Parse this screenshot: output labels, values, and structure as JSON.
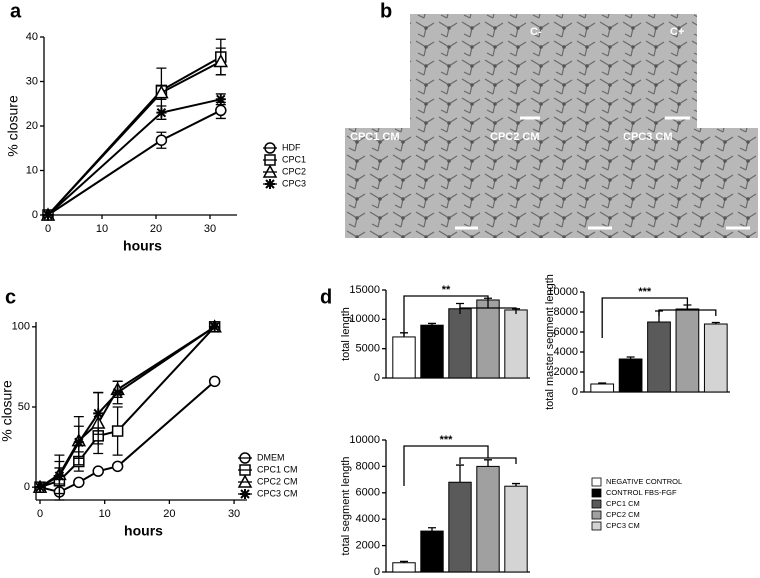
{
  "chart_data": [
    {
      "type": "line",
      "panel": "a",
      "ylabel": "% closure",
      "xlabel": "hours",
      "x": [
        0,
        21,
        32
      ],
      "xlim": [
        0,
        35
      ],
      "xticks": [
        0,
        10,
        20,
        30
      ],
      "ylim": [
        0,
        40
      ],
      "yticks": [
        0,
        10,
        20,
        30,
        40
      ],
      "series": [
        {
          "name": "HDF",
          "marker": "circle",
          "color": "#000000",
          "values": [
            0,
            16.8,
            23.5
          ],
          "errors": [
            0,
            1.8,
            1.8
          ]
        },
        {
          "name": "CPC1",
          "marker": "square",
          "color": "#000000",
          "values": [
            0,
            28,
            35.5
          ],
          "errors": [
            0,
            5,
            4
          ]
        },
        {
          "name": "CPC2",
          "marker": "triangle",
          "color": "#000000",
          "values": [
            0,
            27.5,
            34.5
          ],
          "errors": [
            0,
            1.5,
            3
          ]
        },
        {
          "name": "CPC3",
          "marker": "star",
          "color": "#000000",
          "values": [
            0,
            23,
            26
          ],
          "errors": [
            0,
            1.5,
            1.2
          ]
        }
      ]
    },
    {
      "type": "line",
      "panel": "c",
      "ylabel": "% closure",
      "xlabel": "hours",
      "x": [
        0,
        3,
        6,
        9,
        12,
        27
      ],
      "xlim": [
        0,
        32
      ],
      "xticks": [
        0,
        10,
        20,
        30
      ],
      "ylim": [
        -8,
        103
      ],
      "yticks": [
        0,
        50,
        100
      ],
      "series": [
        {
          "name": "DMEM",
          "marker": "circle",
          "color": "#000000",
          "values": [
            0,
            -3,
            3,
            10,
            13,
            66
          ],
          "errors": [
            0,
            0,
            0,
            0,
            0,
            0
          ]
        },
        {
          "name": "CPC1 CM",
          "marker": "square",
          "color": "#000000",
          "values": [
            0,
            4,
            16,
            32,
            35,
            100
          ],
          "errors": [
            0,
            12,
            6,
            5,
            15,
            0
          ]
        },
        {
          "name": "CPC2 CM",
          "marker": "triangle",
          "color": "#000000",
          "values": [
            0,
            8,
            29,
            40,
            61,
            100
          ],
          "errors": [
            0,
            12,
            15,
            19,
            5,
            0
          ]
        },
        {
          "name": "CPC3 CM",
          "marker": "star",
          "color": "#000000",
          "values": [
            0,
            7,
            28,
            46,
            59,
            100
          ],
          "errors": [
            0,
            5,
            10,
            13,
            7,
            0
          ]
        }
      ]
    },
    {
      "type": "bar",
      "panel": "d",
      "ylabel": "total length",
      "significance": "**",
      "categories": [
        "NEGATIVE CONTROL",
        "CONTROL FBS-FGF",
        "CPC1 CM",
        "CPC2 CM",
        "CPC3 CM"
      ],
      "colors": [
        "#ffffff",
        "#000000",
        "#5a5a5a",
        "#a0a0a0",
        "#d4d4d4"
      ],
      "values": [
        7000,
        9000,
        11800,
        13300,
        11600
      ],
      "errors": [
        700,
        300,
        900,
        300,
        200
      ],
      "ylim": [
        0,
        15000
      ],
      "yticks": [
        0,
        5000,
        10000,
        15000
      ]
    },
    {
      "type": "bar",
      "ylabel": "total master segment length",
      "significance": "***",
      "values": [
        800,
        3300,
        7000,
        8300,
        6800
      ],
      "errors": [
        100,
        200,
        1100,
        400,
        150
      ],
      "ylim": [
        0,
        10000
      ],
      "yticks": [
        0,
        2000,
        4000,
        6000,
        8000,
        10000
      ]
    },
    {
      "type": "bar",
      "ylabel": "total segment length",
      "significance": "***",
      "values": [
        700,
        3100,
        6800,
        8000,
        6500
      ],
      "errors": [
        100,
        250,
        1300,
        500,
        200
      ],
      "ylim": [
        0,
        10000
      ],
      "yticks": [
        0,
        2000,
        4000,
        6000,
        8000,
        10000
      ]
    }
  ],
  "images": {
    "panel": "b",
    "labels": [
      "C-",
      "C+",
      "CPC1 CM",
      "CPC2 CM",
      "CPC3 CM"
    ]
  }
}
